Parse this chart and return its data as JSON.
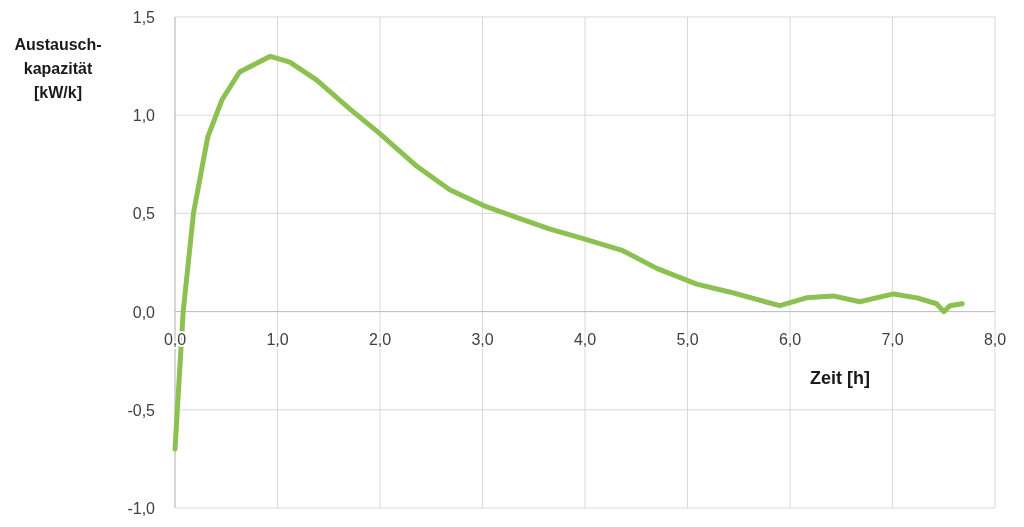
{
  "chart_data": {
    "type": "line",
    "xlabel": "Zeit [h]",
    "ylabel": "Austausch-kapazität [kW/k]",
    "x": [
      0.0,
      0.08,
      0.18,
      0.32,
      0.46,
      0.63,
      0.93,
      1.12,
      1.38,
      1.71,
      1.99,
      2.36,
      2.68,
      3.01,
      3.33,
      3.66,
      3.99,
      4.37,
      4.7,
      5.09,
      5.41,
      5.9,
      6.16,
      6.42,
      6.68,
      7.01,
      7.24,
      7.43,
      7.5,
      7.56,
      7.68
    ],
    "series": [
      {
        "color": "#8cc152",
        "values": [
          -0.7,
          0.0,
          0.5,
          0.89,
          1.08,
          1.22,
          1.3,
          1.27,
          1.18,
          1.03,
          0.91,
          0.74,
          0.62,
          0.54,
          0.48,
          0.42,
          0.37,
          0.31,
          0.22,
          0.14,
          0.1,
          0.03,
          0.07,
          0.08,
          0.05,
          0.09,
          0.07,
          0.04,
          0.0,
          0.03,
          0.04
        ]
      }
    ],
    "xlim": [
      0,
      8
    ],
    "ylim": [
      -1,
      1.5
    ],
    "xticks": [
      {
        "value": 0,
        "label": "0,0"
      },
      {
        "value": 1,
        "label": "1,0"
      },
      {
        "value": 2,
        "label": "2,0"
      },
      {
        "value": 3,
        "label": "3,0"
      },
      {
        "value": 4,
        "label": "4,0"
      },
      {
        "value": 5,
        "label": "5,0"
      },
      {
        "value": 6,
        "label": "6,0"
      },
      {
        "value": 7,
        "label": "7,0"
      },
      {
        "value": 8,
        "label": "8,0"
      }
    ],
    "yticks": [
      {
        "value": -1,
        "label": "-1,0"
      },
      {
        "value": -0.5,
        "label": "-0,5"
      },
      {
        "value": 0,
        "label": "0,0"
      },
      {
        "value": 0.5,
        "label": "0,5"
      },
      {
        "value": 1,
        "label": "1,0"
      },
      {
        "value": 1.5,
        "label": "1,5"
      }
    ],
    "grid": true,
    "marker": "none",
    "line_style": "solid"
  }
}
